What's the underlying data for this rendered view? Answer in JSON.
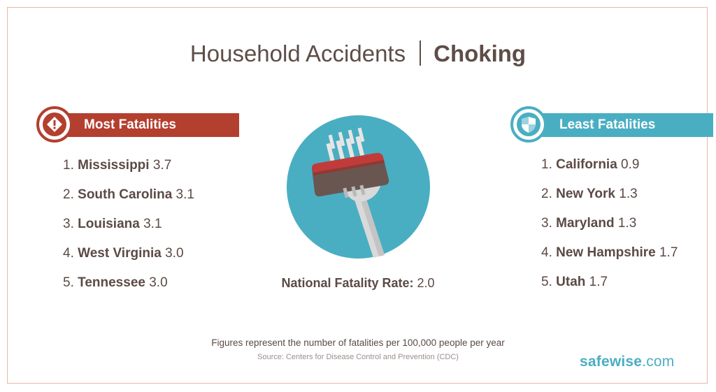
{
  "title": {
    "left": "Household Accidents",
    "right": "Choking"
  },
  "most": {
    "label": "Most Fatalities",
    "icon": "warning-icon",
    "color": "#b33f2f",
    "items": [
      {
        "num": "1.",
        "name": "Mississippi",
        "value": "3.7"
      },
      {
        "num": "2.",
        "name": "South Carolina",
        "value": "3.1"
      },
      {
        "num": "3.",
        "name": "Louisiana",
        "value": "3.1"
      },
      {
        "num": "4.",
        "name": "West Virginia",
        "value": "3.0"
      },
      {
        "num": "5.",
        "name": "Tennessee",
        "value": "3.0"
      }
    ]
  },
  "least": {
    "label": "Least Fatalities",
    "icon": "shield-icon",
    "color": "#4aaec2",
    "items": [
      {
        "num": "1.",
        "name": "California",
        "value": "0.9"
      },
      {
        "num": "2.",
        "name": "New York",
        "value": "1.3"
      },
      {
        "num": "3.",
        "name": "Maryland",
        "value": "1.3"
      },
      {
        "num": "4.",
        "name": "New Hampshire",
        "value": "1.7"
      },
      {
        "num": "5.",
        "name": "Utah",
        "value": "1.7"
      }
    ]
  },
  "center": {
    "icon": "fork-with-meat-icon",
    "national_label": "National Fatality Rate:",
    "national_value": "2.0"
  },
  "footnote": "Figures represent the number of fatalities per 100,000 people per year",
  "source": "Source: Centers for Disease Control and Prevention (CDC)",
  "logo": {
    "part1": "safe",
    "part2": "wise",
    "part3": ".com"
  }
}
